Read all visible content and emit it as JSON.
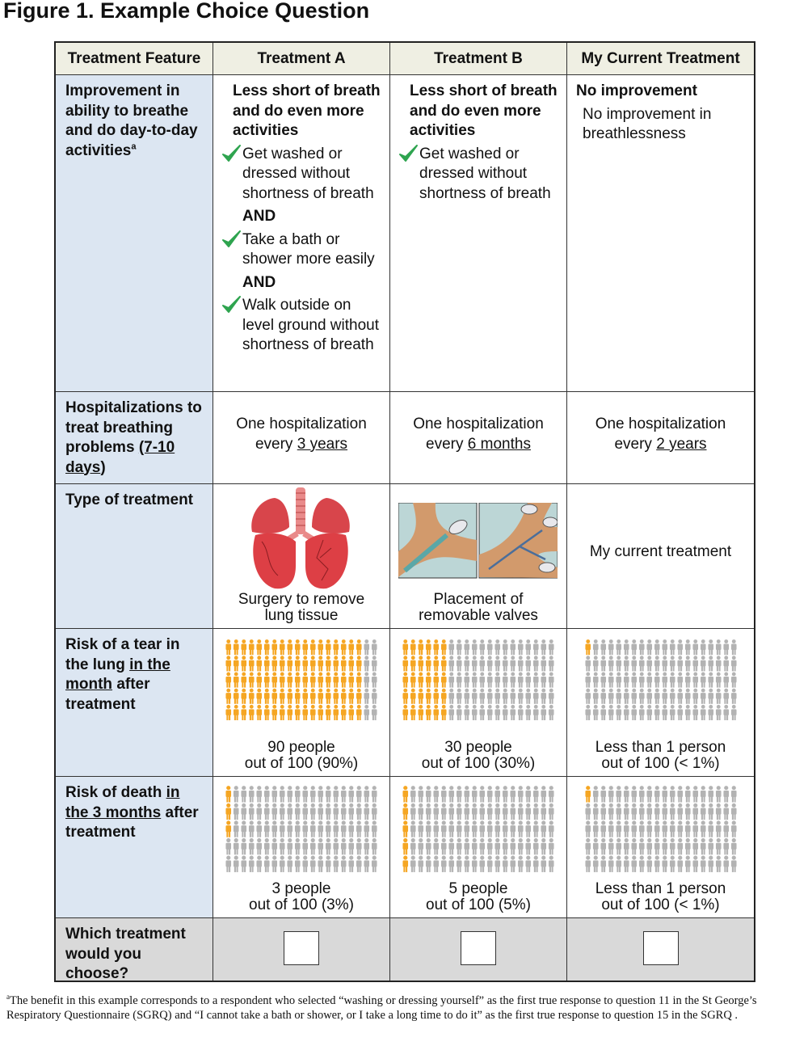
{
  "title": "Figure 1. Example Choice Question",
  "table": {
    "columns": [
      "Treatment Feature",
      "Treatment A",
      "Treatment B",
      "My Current Treatment"
    ],
    "rows": [
      {
        "label": [
          {
            "text": "Improvement in ability to breathe and do day-to-day activities"
          },
          {
            "text": "a",
            "sup": true
          }
        ],
        "cells": [
          {
            "heading": "Less short of breath and do even more activities",
            "items": [
              {
                "text": "Get washed or dressed without shortness of breath",
                "check": true
              },
              {
                "text": "AND",
                "bold": true
              },
              {
                "text": "Take a bath or shower more easily",
                "check": true
              },
              {
                "text": "AND",
                "bold": true
              },
              {
                "text": "Walk outside on level ground without shortness of breath",
                "check": true
              }
            ]
          },
          {
            "heading": "Less short of breath and do even more activities",
            "items": [
              {
                "text": "Get washed or dressed without shortness of breath",
                "check": true
              }
            ]
          },
          {
            "heading": "No improvement",
            "items": [
              {
                "text": "No improvement in breathlessness"
              }
            ]
          }
        ]
      },
      {
        "label": [
          {
            "text": "Hospitalizations to treat breathing problems "
          },
          {
            "text": "(7-10 days",
            "u": true
          },
          {
            "text": ")"
          }
        ],
        "cells": [
          {
            "lines": [
              [
                {
                  "text": "One hospitalization"
                }
              ],
              [
                {
                  "text": "every "
                },
                {
                  "text": "3 years",
                  "u": true
                }
              ]
            ]
          },
          {
            "lines": [
              [
                {
                  "text": "One hospitalization"
                }
              ],
              [
                {
                  "text": "every "
                },
                {
                  "text": "6 months",
                  "u": true
                }
              ]
            ]
          },
          {
            "lines": [
              [
                {
                  "text": "One hospitalization"
                }
              ],
              [
                {
                  "text": "every "
                },
                {
                  "text": "2 years",
                  "u": true
                }
              ]
            ]
          }
        ]
      },
      {
        "label": [
          {
            "text": "Type of treatment"
          }
        ],
        "cells": [
          {
            "caption": [
              "Surgery to remove",
              "lung tissue"
            ]
          },
          {
            "caption": [
              "Placement of",
              "removable valves"
            ]
          },
          {
            "text": "My current treatment"
          }
        ]
      },
      {
        "label": [
          {
            "text": "Risk of a tear in the lung "
          },
          {
            "text": "in the month",
            "u": true
          },
          {
            "text": " after treatment"
          }
        ],
        "cells": [
          {
            "highlighted": 90,
            "total": 100,
            "caption": [
              "90 people",
              "out of 100 (90%)"
            ]
          },
          {
            "highlighted": 30,
            "total": 100,
            "caption": [
              "30 people",
              "out of 100 (30%)"
            ]
          },
          {
            "highlighted": 1,
            "total": 100,
            "caption": [
              "Less than 1 person",
              "out of 100 (< 1%)"
            ]
          }
        ]
      },
      {
        "label": [
          {
            "text": "Risk of death "
          },
          {
            "text": "in the 3 months",
            "u": true
          },
          {
            "text": " after treatment"
          }
        ],
        "cells": [
          {
            "highlighted": 3,
            "total": 100,
            "caption": [
              "3 people",
              "out of 100 (3%)"
            ]
          },
          {
            "highlighted": 5,
            "total": 100,
            "caption": [
              "5 people",
              "out of 100 (5%)"
            ]
          },
          {
            "highlighted": 1,
            "total": 100,
            "caption": [
              "Less than 1 person",
              "out of 100 (< 1%)"
            ]
          }
        ]
      },
      {
        "label": [
          {
            "text": "Which treatment would you choose?"
          }
        ],
        "cells": [
          {
            "choice": true
          },
          {
            "choice": true
          },
          {
            "choice": true
          }
        ]
      }
    ]
  },
  "footnote": [
    {
      "text": "a",
      "sup": true
    },
    {
      "text": "The benefit in this example corresponds to a respondent who selected “washing or dressing yourself” as the first true response to question 11 in the St George’s Respiratory Questionnaire (SGRQ) and “I cannot take a bath or shower, or I take a long time to do it” as the first true response to question 15 in the SGRQ ."
    }
  ]
}
